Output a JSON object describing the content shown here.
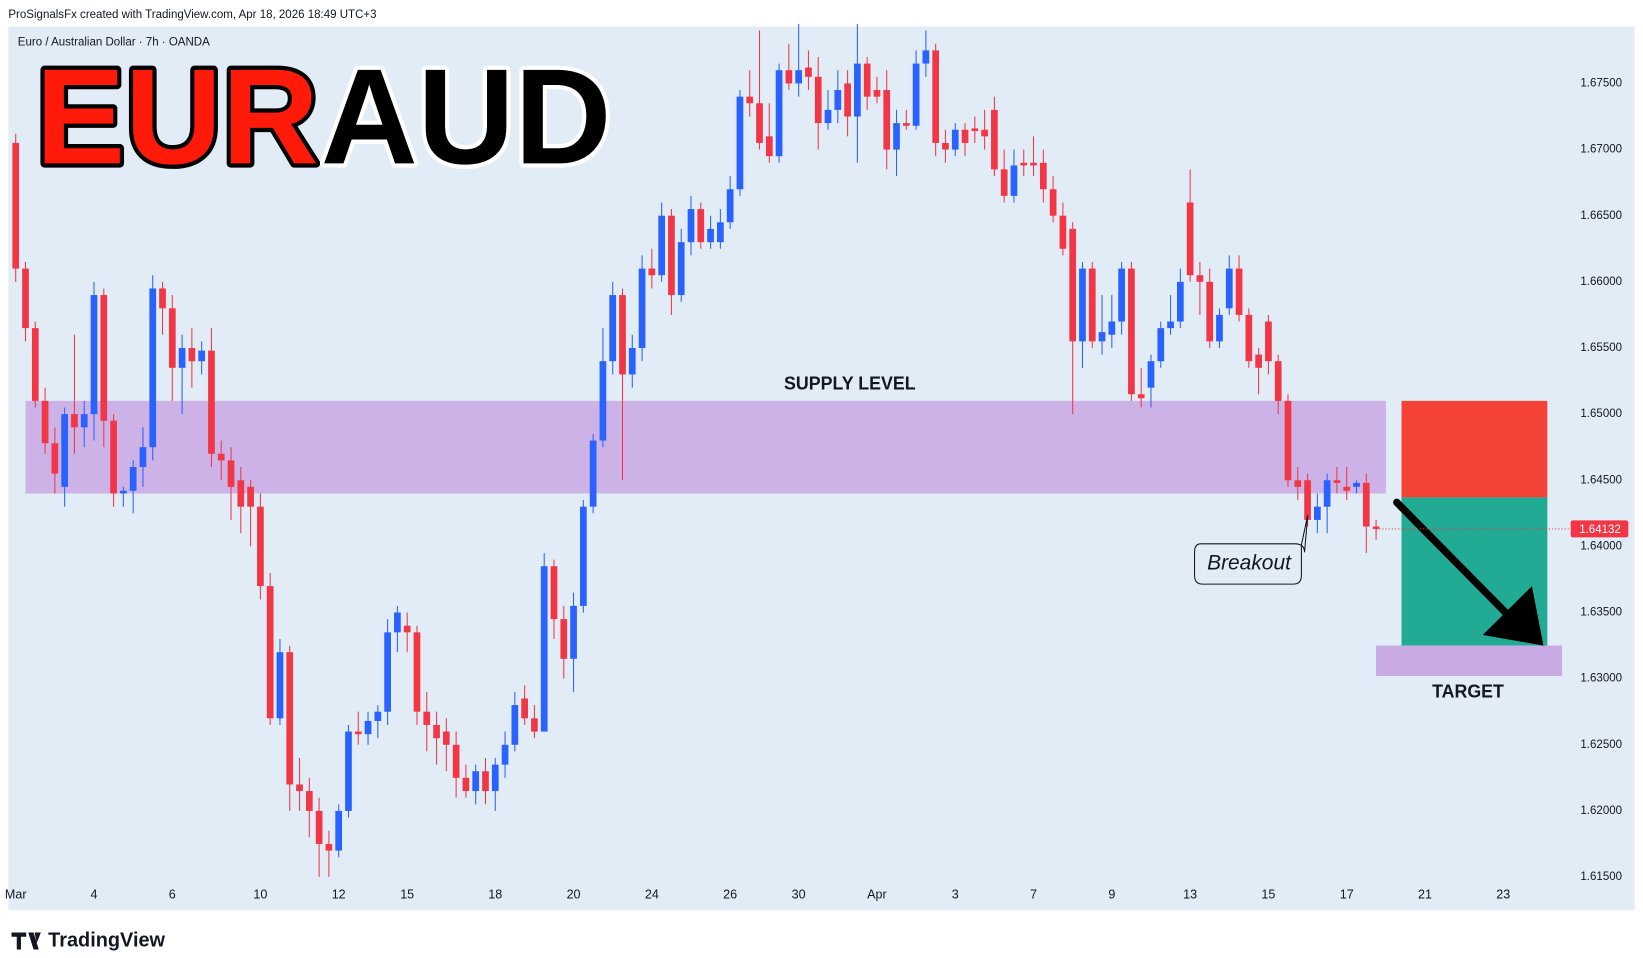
{
  "chart_data": {
    "type": "candlestick",
    "source": "ProSignalsFx created with TradingView.com, Apr 18, 2026 18:49 UTC+3",
    "subtitle": "Euro / Australian Dollar · 7h · OANDA",
    "title_parts": [
      "EUR",
      "AUD"
    ],
    "brand": "TradingView",
    "annotations": {
      "supply": "SUPPLY LEVEL",
      "breakout": "Breakout",
      "target": "TARGET"
    },
    "up_color": "#2962ff",
    "down_color": "#f23645",
    "grid": false,
    "ylim": [
      1.6145,
      1.6793
    ],
    "yticks": [
      {
        "value": 1.615,
        "label": "1.61500"
      },
      {
        "value": 1.62,
        "label": "1.62000"
      },
      {
        "value": 1.625,
        "label": "1.62500"
      },
      {
        "value": 1.63,
        "label": "1.63000"
      },
      {
        "value": 1.635,
        "label": "1.63500"
      },
      {
        "value": 1.64,
        "label": "1.64000"
      },
      {
        "value": 1.645,
        "label": "1.64500"
      },
      {
        "value": 1.65,
        "label": "1.65000"
      },
      {
        "value": 1.655,
        "label": "1.65500"
      },
      {
        "value": 1.66,
        "label": "1.66000"
      },
      {
        "value": 1.665,
        "label": "1.66500"
      },
      {
        "value": 1.67,
        "label": "1.67000"
      },
      {
        "value": 1.675,
        "label": "1.67500"
      }
    ],
    "supply_zone": [
      1.644,
      1.651
    ],
    "stop_zone": [
      1.6437,
      1.651
    ],
    "reward_zone": [
      1.6325,
      1.6437
    ],
    "target_zone": [
      1.6302,
      1.6325
    ],
    "categories": [
      "Mar",
      null,
      null,
      null,
      null,
      null,
      null,
      null,
      "4",
      null,
      null,
      null,
      null,
      null,
      null,
      null,
      "6",
      null,
      null,
      null,
      null,
      null,
      null,
      null,
      null,
      "10",
      null,
      null,
      null,
      null,
      null,
      null,
      null,
      "12",
      null,
      null,
      null,
      null,
      null,
      null,
      "15",
      null,
      null,
      null,
      null,
      null,
      null,
      null,
      null,
      "18",
      null,
      null,
      null,
      null,
      null,
      null,
      null,
      "20",
      null,
      null,
      null,
      null,
      null,
      null,
      null,
      "24",
      null,
      null,
      null,
      null,
      null,
      null,
      null,
      "26",
      null,
      null,
      null,
      null,
      null,
      null,
      "30",
      null,
      null,
      null,
      null,
      null,
      null,
      null,
      "Apr",
      null,
      null,
      null,
      null,
      null,
      null,
      null,
      "3",
      null,
      null,
      null,
      null,
      null,
      null,
      null,
      "7",
      null,
      null,
      null,
      null,
      null,
      null,
      null,
      "9",
      null,
      null,
      null,
      null,
      null,
      null,
      null,
      "13",
      null,
      null,
      null,
      null,
      null,
      null,
      null,
      "15",
      null,
      null,
      null,
      null,
      null,
      null,
      null,
      "17",
      null,
      null,
      null,
      null,
      null,
      null,
      null,
      "21",
      null,
      null,
      null,
      null,
      null,
      null,
      null,
      "23",
      null,
      null,
      null,
      null,
      null,
      null
    ],
    "candles": [
      [
        1.6705,
        1.6712,
        1.66,
        1.661
      ],
      [
        1.661,
        1.6615,
        1.6555,
        1.6565
      ],
      [
        1.6565,
        1.657,
        1.6505,
        1.651
      ],
      [
        1.651,
        1.652,
        1.647,
        1.6478
      ],
      [
        1.6478,
        1.649,
        1.644,
        1.6455
      ],
      [
        1.6445,
        1.6505,
        1.643,
        1.65
      ],
      [
        1.65,
        1.656,
        1.647,
        1.649
      ],
      [
        1.649,
        1.651,
        1.6475,
        1.65
      ],
      [
        1.65,
        1.66,
        1.648,
        1.659
      ],
      [
        1.659,
        1.6595,
        1.6475,
        1.6495
      ],
      [
        1.6495,
        1.65,
        1.643,
        1.644
      ],
      [
        1.644,
        1.6445,
        1.643,
        1.6442
      ],
      [
        1.6442,
        1.6465,
        1.6425,
        1.646
      ],
      [
        1.646,
        1.649,
        1.6445,
        1.6475
      ],
      [
        1.6475,
        1.6605,
        1.6465,
        1.6595
      ],
      [
        1.6595,
        1.66,
        1.656,
        1.658
      ],
      [
        1.658,
        1.659,
        1.651,
        1.6535
      ],
      [
        1.6535,
        1.656,
        1.65,
        1.655
      ],
      [
        1.655,
        1.6565,
        1.652,
        1.654
      ],
      [
        1.654,
        1.6555,
        1.653,
        1.6548
      ],
      [
        1.6548,
        1.6565,
        1.646,
        1.647
      ],
      [
        1.647,
        1.648,
        1.645,
        1.6465
      ],
      [
        1.6465,
        1.6475,
        1.642,
        1.6445
      ],
      [
        1.645,
        1.646,
        1.641,
        1.643
      ],
      [
        1.6445,
        1.645,
        1.64,
        1.643
      ],
      [
        1.643,
        1.644,
        1.636,
        1.637
      ],
      [
        1.637,
        1.638,
        1.6265,
        1.627
      ],
      [
        1.627,
        1.633,
        1.6265,
        1.632
      ],
      [
        1.632,
        1.6325,
        1.62,
        1.622
      ],
      [
        1.622,
        1.624,
        1.62,
        1.6215
      ],
      [
        1.6215,
        1.6225,
        1.618,
        1.62
      ],
      [
        1.62,
        1.621,
        1.615,
        1.6175
      ],
      [
        1.6175,
        1.6185,
        1.615,
        1.617
      ],
      [
        1.617,
        1.6205,
        1.6165,
        1.62
      ],
      [
        1.62,
        1.6265,
        1.6195,
        1.626
      ],
      [
        1.626,
        1.6275,
        1.625,
        1.6258
      ],
      [
        1.6258,
        1.6275,
        1.625,
        1.6268
      ],
      [
        1.6268,
        1.628,
        1.6255,
        1.6275
      ],
      [
        1.6275,
        1.6345,
        1.6265,
        1.6335
      ],
      [
        1.6335,
        1.6355,
        1.632,
        1.635
      ],
      [
        1.634,
        1.635,
        1.632,
        1.6335
      ],
      [
        1.6335,
        1.634,
        1.6265,
        1.6275
      ],
      [
        1.6275,
        1.629,
        1.6245,
        1.6265
      ],
      [
        1.6265,
        1.6275,
        1.6235,
        1.6255
      ],
      [
        1.626,
        1.627,
        1.623,
        1.625
      ],
      [
        1.625,
        1.626,
        1.621,
        1.6225
      ],
      [
        1.6225,
        1.6235,
        1.621,
        1.6215
      ],
      [
        1.6215,
        1.6235,
        1.6205,
        1.623
      ],
      [
        1.623,
        1.624,
        1.6205,
        1.6215
      ],
      [
        1.6215,
        1.624,
        1.62,
        1.6235
      ],
      [
        1.6235,
        1.626,
        1.6225,
        1.625
      ],
      [
        1.625,
        1.629,
        1.6245,
        1.628
      ],
      [
        1.6285,
        1.6295,
        1.6265,
        1.627
      ],
      [
        1.627,
        1.628,
        1.6255,
        1.626
      ],
      [
        1.626,
        1.6395,
        1.626,
        1.6385
      ],
      [
        1.6385,
        1.639,
        1.633,
        1.6345
      ],
      [
        1.6345,
        1.6355,
        1.63,
        1.6315
      ],
      [
        1.6315,
        1.6365,
        1.629,
        1.6355
      ],
      [
        1.6355,
        1.6435,
        1.635,
        1.643
      ],
      [
        1.643,
        1.6485,
        1.6425,
        1.648
      ],
      [
        1.648,
        1.6565,
        1.6475,
        1.654
      ],
      [
        1.654,
        1.66,
        1.653,
        1.659
      ],
      [
        1.659,
        1.6595,
        1.645,
        1.653
      ],
      [
        1.653,
        1.656,
        1.652,
        1.655
      ],
      [
        1.655,
        1.662,
        1.654,
        1.661
      ],
      [
        1.661,
        1.6625,
        1.6595,
        1.6605
      ],
      [
        1.6605,
        1.666,
        1.66,
        1.665
      ],
      [
        1.665,
        1.6655,
        1.6575,
        1.659
      ],
      [
        1.659,
        1.664,
        1.6585,
        1.663
      ],
      [
        1.663,
        1.6665,
        1.662,
        1.6655
      ],
      [
        1.6655,
        1.666,
        1.6625,
        1.663
      ],
      [
        1.663,
        1.665,
        1.6625,
        1.664
      ],
      [
        1.663,
        1.6655,
        1.6625,
        1.6645
      ],
      [
        1.6645,
        1.668,
        1.664,
        1.667
      ],
      [
        1.667,
        1.6745,
        1.6665,
        1.674
      ],
      [
        1.674,
        1.676,
        1.6725,
        1.6735
      ],
      [
        1.6735,
        1.679,
        1.67,
        1.6705
      ],
      [
        1.671,
        1.6735,
        1.669,
        1.6695
      ],
      [
        1.6695,
        1.6765,
        1.669,
        1.676
      ],
      [
        1.676,
        1.678,
        1.6745,
        1.675
      ],
      [
        1.675,
        1.6795,
        1.674,
        1.676
      ],
      [
        1.6762,
        1.6775,
        1.6745,
        1.6755
      ],
      [
        1.6755,
        1.677,
        1.67,
        1.672
      ],
      [
        1.672,
        1.6745,
        1.6715,
        1.673
      ],
      [
        1.673,
        1.676,
        1.672,
        1.6745
      ],
      [
        1.675,
        1.676,
        1.671,
        1.6725
      ],
      [
        1.6725,
        1.6795,
        1.669,
        1.6765
      ],
      [
        1.6765,
        1.677,
        1.673,
        1.674
      ],
      [
        1.6745,
        1.6755,
        1.6735,
        1.674
      ],
      [
        1.6745,
        1.676,
        1.6685,
        1.67
      ],
      [
        1.67,
        1.673,
        1.668,
        1.672
      ],
      [
        1.672,
        1.673,
        1.6715,
        1.6718
      ],
      [
        1.6718,
        1.6775,
        1.6715,
        1.6765
      ],
      [
        1.6765,
        1.679,
        1.6755,
        1.6775
      ],
      [
        1.6775,
        1.678,
        1.6695,
        1.6705
      ],
      [
        1.6705,
        1.6715,
        1.669,
        1.67
      ],
      [
        1.67,
        1.672,
        1.6695,
        1.6715
      ],
      [
        1.6715,
        1.672,
        1.6695,
        1.6705
      ],
      [
        1.6716,
        1.6725,
        1.6705,
        1.6714
      ],
      [
        1.6715,
        1.673,
        1.67,
        1.671
      ],
      [
        1.673,
        1.674,
        1.668,
        1.6685
      ],
      [
        1.6685,
        1.67,
        1.666,
        1.6665
      ],
      [
        1.6665,
        1.67,
        1.666,
        1.6688
      ],
      [
        1.669,
        1.67,
        1.668,
        1.6688
      ],
      [
        1.669,
        1.671,
        1.668,
        1.6688
      ],
      [
        1.669,
        1.67,
        1.666,
        1.667
      ],
      [
        1.667,
        1.668,
        1.6645,
        1.665
      ],
      [
        1.665,
        1.666,
        1.662,
        1.6625
      ],
      [
        1.664,
        1.6645,
        1.65,
        1.6555
      ],
      [
        1.6555,
        1.6615,
        1.6535,
        1.661
      ],
      [
        1.661,
        1.6615,
        1.655,
        1.6555
      ],
      [
        1.6555,
        1.659,
        1.6545,
        1.6562
      ],
      [
        1.656,
        1.659,
        1.655,
        1.657
      ],
      [
        1.657,
        1.6615,
        1.656,
        1.661
      ],
      [
        1.661,
        1.6615,
        1.651,
        1.6515
      ],
      [
        1.6515,
        1.6535,
        1.6505,
        1.6512
      ],
      [
        1.652,
        1.6545,
        1.6505,
        1.654
      ],
      [
        1.654,
        1.657,
        1.6535,
        1.6565
      ],
      [
        1.6565,
        1.659,
        1.656,
        1.657
      ],
      [
        1.657,
        1.661,
        1.6565,
        1.66
      ],
      [
        1.666,
        1.6685,
        1.66,
        1.6605
      ],
      [
        1.6605,
        1.6615,
        1.6575,
        1.66
      ],
      [
        1.66,
        1.661,
        1.655,
        1.6555
      ],
      [
        1.6555,
        1.658,
        1.655,
        1.6575
      ],
      [
        1.658,
        1.662,
        1.6575,
        1.661
      ],
      [
        1.661,
        1.662,
        1.657,
        1.6575
      ],
      [
        1.6575,
        1.658,
        1.6535,
        1.654
      ],
      [
        1.6545,
        1.655,
        1.6515,
        1.6535
      ],
      [
        1.657,
        1.6575,
        1.653,
        1.654
      ],
      [
        1.654,
        1.6545,
        1.65,
        1.651
      ],
      [
        1.651,
        1.6515,
        1.6445,
        1.645
      ],
      [
        1.645,
        1.646,
        1.6435,
        1.6445
      ],
      [
        1.645,
        1.6455,
        1.6415,
        1.642
      ],
      [
        1.642,
        1.644,
        1.641,
        1.643
      ],
      [
        1.643,
        1.6455,
        1.641,
        1.645
      ],
      [
        1.645,
        1.646,
        1.644,
        1.6448
      ],
      [
        1.6445,
        1.646,
        1.6435,
        1.6442
      ],
      [
        1.6445,
        1.645,
        1.644,
        1.6448
      ],
      [
        1.6448,
        1.6455,
        1.6395,
        1.6415
      ],
      [
        1.6415,
        1.642,
        1.6405,
        1.64132
      ],
      null,
      null,
      null,
      null,
      null,
      null,
      null,
      null,
      null,
      null,
      null,
      null,
      null,
      null,
      null,
      null,
      null,
      null,
      null
    ]
  }
}
